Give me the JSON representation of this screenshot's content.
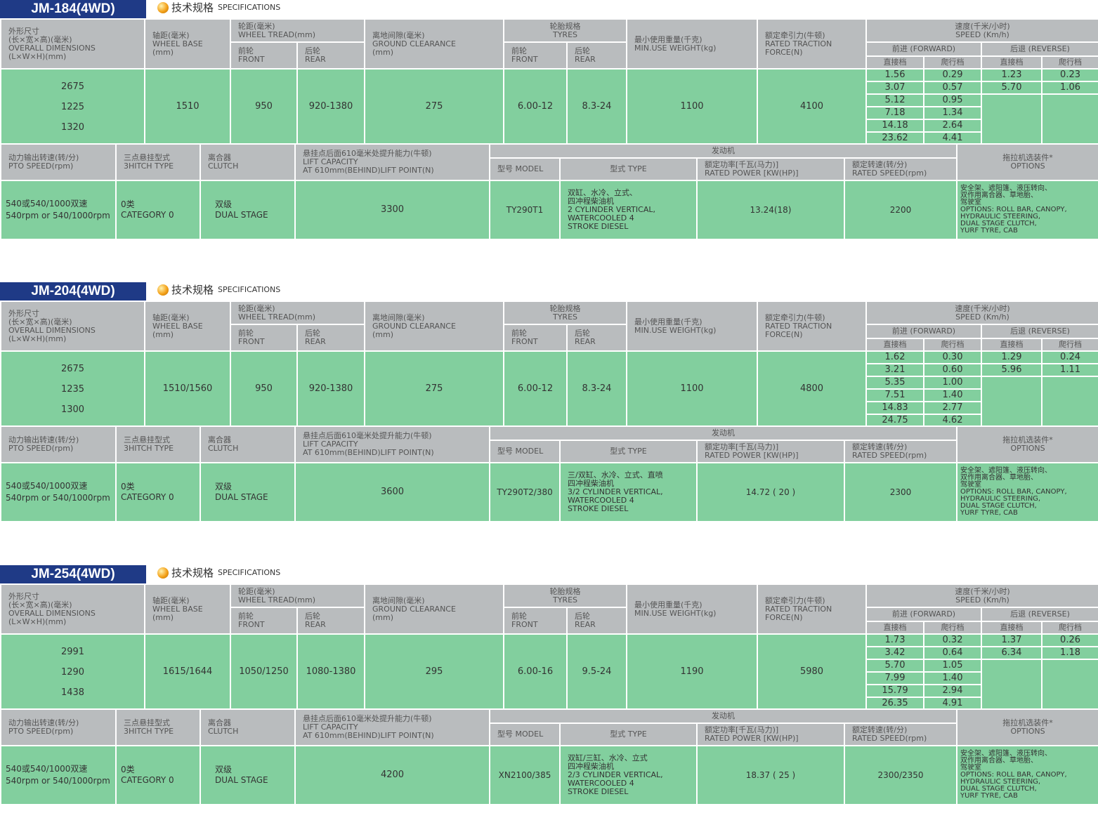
{
  "spec_label_cn": "技术规格",
  "spec_label_en": "SPECIFICATIONS",
  "headers": {
    "dims": "外形尺寸\n(长×宽×高)(毫米)\nOVERALL DIMENSIONS\n(L×W×H)(mm)",
    "wheelbase": "轴距(毫米)\nWHEEL BASE\n(mm)",
    "tread": "轮距(毫米)\nWHEEL TREAD(mm)",
    "front": "前轮\nFRONT",
    "rear": "后轮\nREAR",
    "ground": "离地间隙(毫米)\nGROUND CLEARANCE\n(mm)",
    "tyres": "轮胎规格\nTYRES",
    "weight": "最小使用重量(千克)\nMIN.USE WEIGHT(kg)",
    "traction": "额定牵引力(牛顿)\nRATED TRACTION\nFORCE(N)",
    "speed": "速度(千米/小时)\nSPEED (Km/h)",
    "forward": "前进 (FORWARD)",
    "reverse": "后退 (REVERSE)",
    "direct": "直接档",
    "creep": "爬行档",
    "pto": "动力输出转速(转/分)\nPTO SPEED(rpm)",
    "hitch": "三点悬挂型式\n3HITCH TYPE",
    "clutch": "离合器\nCLUTCH",
    "lift": "悬挂点后面610毫米处提升能力(牛顿)\nLIFT CAPACITY\nAT 610mm(BEHIND)LIFT POINT(N)",
    "engine": "发动机",
    "model": "型号 MODEL",
    "type": "型式 TYPE",
    "power": "额定功率[千瓦(马力)]\nRATED POWER [KW(HP)]",
    "rspeed": "额定转速(转/分)\nRATED SPEED(rpm)",
    "options": "拖拉机选装件*\nOPTIONS"
  },
  "models": [
    {
      "title": "JM-184(4WD)",
      "dims": [
        "2675",
        "1225",
        "1320"
      ],
      "wheelbase": "1510",
      "tread_front": "950",
      "tread_rear": "920-1380",
      "ground": "275",
      "tyre_front": "6.00-12",
      "tyre_rear": "8.3-24",
      "weight": "1100",
      "traction": "4100",
      "fwd_direct": [
        "1.56",
        "3.07",
        "5.12",
        "7.18",
        "14.18",
        "23.62"
      ],
      "fwd_creep": [
        "0.29",
        "0.57",
        "0.95",
        "1.34",
        "2.64",
        "4.41"
      ],
      "rev_direct": [
        "1.23",
        "5.70"
      ],
      "rev_creep": [
        "0.23",
        "1.06"
      ],
      "pto": "540或540/1000双速\n540rpm or 540/1000rpm",
      "hitch": "0类\nCATEGORY 0",
      "clutch": "双级\nDUAL STAGE",
      "lift": "3300",
      "engine_model": "TY290T1",
      "engine_type": "双缸、水冷、立式、\n四冲程柴油机\n2 CYLINDER VERTICAL,\nWATERCOOLED 4\nSTROKE DIESEL",
      "power": "13.24(18)",
      "rated_speed": "2200",
      "options": "安全架、遮阳篷、液压转向、\n双作用离合器、草地胎、\n驾驶室\nOPTIONS: ROLL BAR, CANOPY,\nHYDRAULIC STEERING,\nDUAL STAGE CLUTCH,\nYURF TYRE, CAB"
    },
    {
      "title": "JM-204(4WD)",
      "dims": [
        "2675",
        "1235",
        "1300"
      ],
      "wheelbase": "1510/1560",
      "tread_front": "950",
      "tread_rear": "920-1380",
      "ground": "275",
      "tyre_front": "6.00-12",
      "tyre_rear": "8.3-24",
      "weight": "1100",
      "traction": "4800",
      "fwd_direct": [
        "1.62",
        "3.21",
        "5.35",
        "7.51",
        "14.83",
        "24.75"
      ],
      "fwd_creep": [
        "0.30",
        "0.60",
        "1.00",
        "1.40",
        "2.77",
        "4.62"
      ],
      "rev_direct": [
        "1.29",
        "5.96"
      ],
      "rev_creep": [
        "0.24",
        "1.11"
      ],
      "pto": "540或540/1000双速\n540rpm or 540/1000rpm",
      "hitch": "0类\nCATEGORY 0",
      "clutch": "双级\nDUAL STAGE",
      "lift": "3600",
      "engine_model": "TY290T2/380",
      "engine_type": "三/双缸、水冷、立式、直喷\n四冲程柴油机\n3/2 CYLINDER VERTICAL,\nWATERCOOLED 4\nSTROKE DIESEL",
      "power": "14.72 ( 20 )",
      "rated_speed": "2300",
      "options": "安全架、遮阳篷、液压转向、\n双作用离合器、草地胎、\n驾驶室\nOPTIONS: ROLL BAR, CANOPY,\nHYDRAULIC STEERING,\nDUAL STAGE CLUTCH,\nYURF TYRE, CAB"
    },
    {
      "title": "JM-254(4WD)",
      "dims": [
        "2991",
        "1290",
        "1438"
      ],
      "wheelbase": "1615/1644",
      "tread_front": "1050/1250",
      "tread_rear": "1080-1380",
      "ground": "295",
      "tyre_front": "6.00-16",
      "tyre_rear": "9.5-24",
      "weight": "1190",
      "traction": "5980",
      "fwd_direct": [
        "1.73",
        "3.42",
        "5.70",
        "7.99",
        "15.79",
        "26.35"
      ],
      "fwd_creep": [
        "0.32",
        "0.64",
        "1.05",
        "1.40",
        "2.94",
        "4.91"
      ],
      "rev_direct": [
        "1.37",
        "6.34"
      ],
      "rev_creep": [
        "0.26",
        "1.18"
      ],
      "pto": "540或540/1000双速\n540rpm or 540/1000rpm",
      "hitch": "0类\nCATEGORY 0",
      "clutch": "双级\nDUAL STAGE",
      "lift": "4200",
      "engine_model": "XN2100/385",
      "engine_type": "双缸/三缸、水冷、立式\n四冲程柴油机\n2/3 CYLINDER VERTICAL,\nWATERCOOLED 4\nSTROKE DIESEL",
      "power": "18.37 ( 25 )",
      "rated_speed": "2300/2350",
      "options": "安全架、遮阳篷、液压转向、\n双作用离合器、草地胎、\n驾驶室\nOPTIONS: ROLL BAR, CANOPY,\nHYDRAULIC STEERING,\nDUAL STAGE CLUTCH,\nYURF TYRE, CAB"
    }
  ]
}
